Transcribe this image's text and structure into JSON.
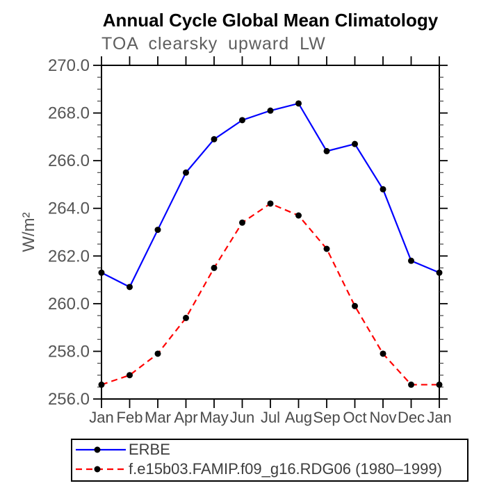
{
  "chart_data": {
    "type": "line",
    "title": "Annual Cycle Global Mean Climatology",
    "subtitle": "TOA clearsky upward LW",
    "ylabel": "W/m²",
    "xlabel": "",
    "categories": [
      "Jan",
      "Feb",
      "Mar",
      "Apr",
      "May",
      "Jun",
      "Jul",
      "Aug",
      "Sep",
      "Oct",
      "Nov",
      "Dec",
      "Jan"
    ],
    "ylim": [
      256.0,
      270.0
    ],
    "ytick_step": 2.0,
    "ytick_minor_step": 0.5,
    "ytick_labels": [
      "256.0",
      "258.0",
      "260.0",
      "262.0",
      "264.0",
      "266.0",
      "268.0",
      "270.0"
    ],
    "grid": false,
    "legend_position": "bottom-left",
    "axis_color": "#000000",
    "tick_label_color": "#555555",
    "month_label_color": "#4a4a4a",
    "series": [
      {
        "name": "ERBE",
        "color": "#0000ff",
        "style": "solid",
        "marker": "circle",
        "marker_color": "#000000",
        "values": [
          261.3,
          260.7,
          263.1,
          265.5,
          266.9,
          267.7,
          268.1,
          268.4,
          266.4,
          266.7,
          264.8,
          261.8,
          261.3
        ]
      },
      {
        "name": "f.e15b03.FAMIP.f09_g16.RDG06 (1980–1999)",
        "color": "#ff0000",
        "style": "dashed",
        "marker": "circle",
        "marker_color": "#000000",
        "values": [
          256.6,
          257.0,
          257.9,
          259.4,
          261.5,
          263.4,
          264.2,
          263.7,
          262.3,
          259.9,
          257.9,
          256.6,
          256.6
        ]
      }
    ]
  }
}
